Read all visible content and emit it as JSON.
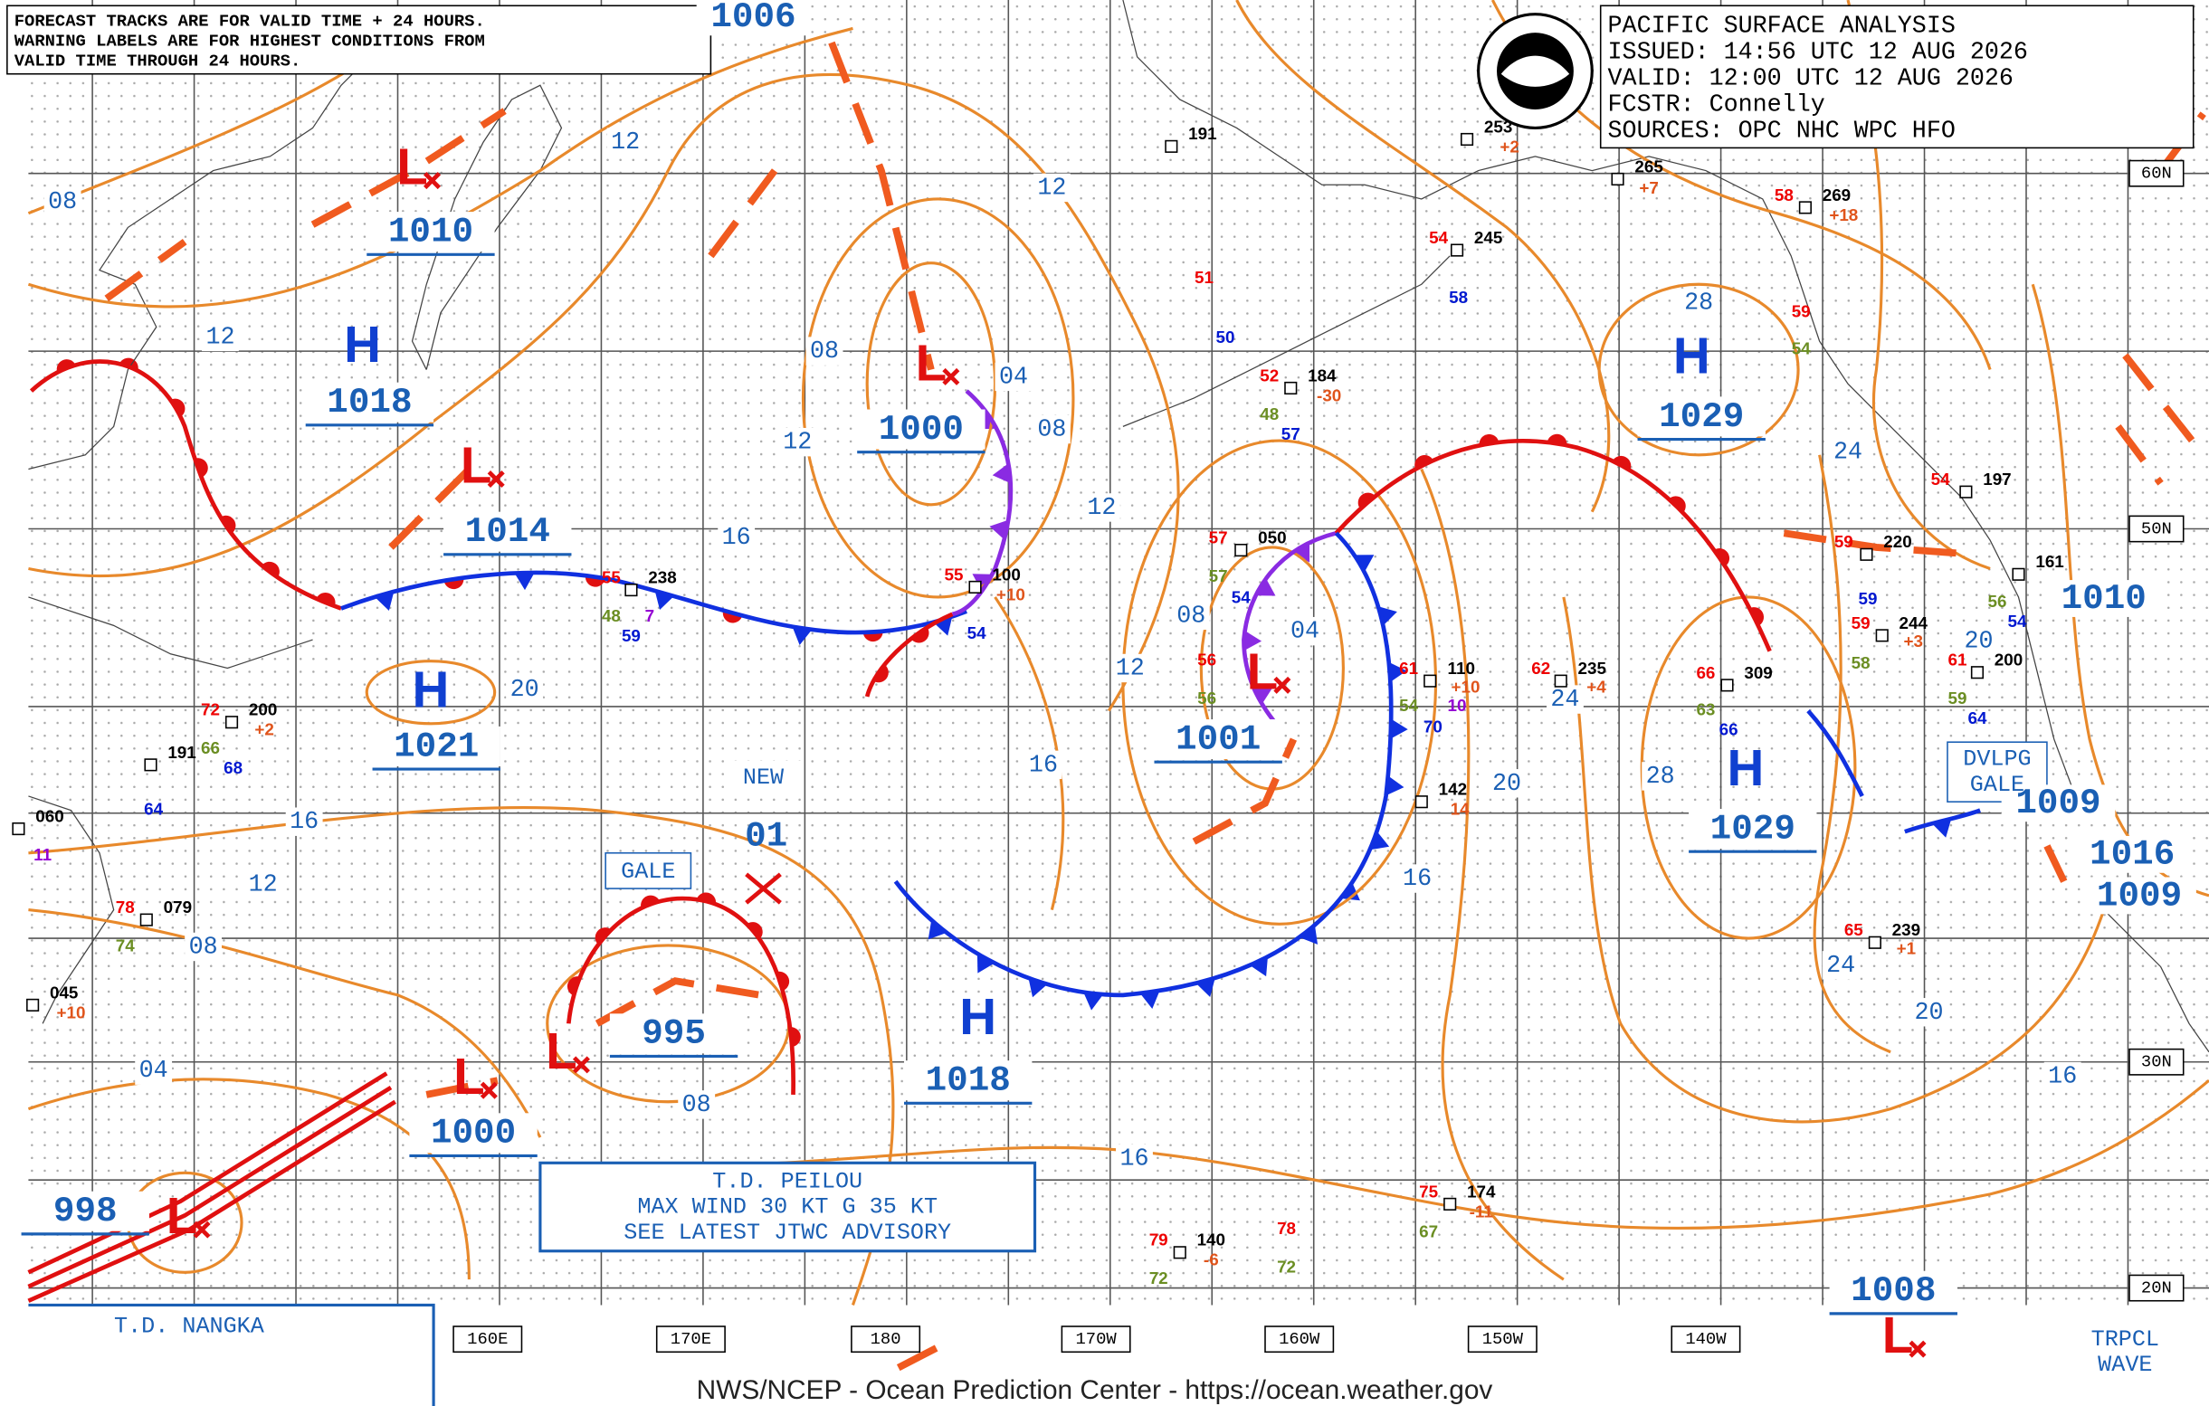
{
  "notice": [
    "FORECAST TRACKS ARE FOR VALID TIME + 24 HOURS.",
    "WARNING LABELS ARE FOR HIGHEST CONDITIONS FROM",
    "VALID TIME THROUGH 24 HOURS."
  ],
  "analysis": [
    "PACIFIC SURFACE ANALYSIS",
    "ISSUED: 14:56 UTC 12 AUG 2026",
    "VALID:  12:00 UTC 12 AUG 2026",
    "FCSTR:  Connelly",
    "SOURCES: OPC NHC WPC HFO"
  ],
  "pressure_centers": [
    {
      "symbol": "H",
      "pressure": "1018"
    },
    {
      "symbol": "L",
      "pressure": "1010"
    },
    {
      "symbol": "L",
      "pressure": "1014"
    },
    {
      "symbol": "L",
      "pressure": "1000"
    },
    {
      "symbol": "H",
      "pressure": "1021"
    },
    {
      "symbol": "L",
      "pressure": "1001"
    },
    {
      "symbol": "H",
      "pressure": "1029"
    },
    {
      "symbol": "H",
      "pressure": "1029"
    },
    {
      "symbol": "H",
      "pressure": "1018"
    },
    {
      "symbol": "L",
      "pressure": "995"
    },
    {
      "symbol": "L",
      "pressure": "1000"
    },
    {
      "symbol": "L",
      "pressure": "998"
    },
    {
      "symbol": "L",
      "pressure": "1008"
    }
  ],
  "pressure_labels": [
    "1006",
    "1010",
    "1009",
    "1016",
    "1009"
  ],
  "isobar_labels": [
    "08",
    "12",
    "12",
    "12",
    "08",
    "04",
    "08",
    "12",
    "12",
    "16",
    "08",
    "04",
    "12",
    "20",
    "16",
    "16",
    "12",
    "08",
    "04",
    "08",
    "16",
    "24",
    "20",
    "28",
    "16",
    "24",
    "20",
    "16",
    "28",
    "24",
    "20"
  ],
  "station_values": [
    "191",
    "253",
    "+2",
    "265",
    "+7",
    "58",
    "269",
    "+18",
    "54",
    "245",
    "58",
    "51",
    "50",
    "59",
    "54",
    "52",
    "184",
    "-30",
    "48",
    "57",
    "54",
    "197",
    "57",
    "050",
    "57",
    "54",
    "55",
    "238",
    "48",
    "7",
    "59",
    "55",
    "100",
    "+10",
    "54",
    "59",
    "220",
    "59",
    "161",
    "56",
    "54",
    "59",
    "244",
    "+3",
    "58",
    "61",
    "200",
    "59",
    "64",
    "56",
    "56",
    "61",
    "110",
    "+10",
    "54",
    "10",
    "70",
    "62",
    "235",
    "+4",
    "66",
    "309",
    "63",
    "66",
    "72",
    "200",
    "+2",
    "66",
    "68",
    "191",
    "64",
    "060",
    "11",
    "78",
    "079",
    "74",
    "045",
    "+10",
    "142",
    "14",
    "65",
    "239",
    "+1",
    "75",
    "174",
    "-11",
    "67",
    "79",
    "140",
    "-6",
    "72",
    "78",
    "72"
  ],
  "longitude_labels": [
    "160E",
    "170E",
    "180",
    "170W",
    "160W",
    "150W",
    "140W"
  ],
  "latitude_labels": [
    "60N",
    "50N",
    "30N",
    "20N"
  ],
  "warnings": {
    "gale": "GALE",
    "new_system": [
      "NEW",
      "01"
    ],
    "developing_gale": [
      "DVLPG",
      "GALE"
    ]
  },
  "tropical": {
    "peilou": [
      "T.D. PEILOU",
      "MAX WIND 30 KT G 35 KT",
      "SEE LATEST JTWC ADVISORY"
    ],
    "nangka": "T.D. NANGKA",
    "wave": [
      "TRPCL",
      "WAVE"
    ]
  },
  "footer": "NWS/NCEP - Ocean Prediction Center - https://ocean.weather.gov"
}
